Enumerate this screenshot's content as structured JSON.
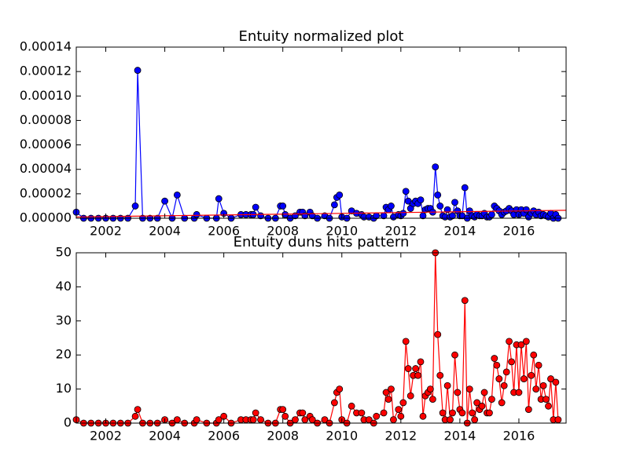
{
  "chart_data": [
    {
      "type": "line",
      "title": "Entuity normalized plot",
      "x": [
        2001.0,
        2001.25,
        2001.5,
        2001.75,
        2002.0,
        2002.25,
        2002.5,
        2002.75,
        2003.0,
        2003.08,
        2003.25,
        2003.5,
        2003.75,
        2004.0,
        2004.25,
        2004.42,
        2004.67,
        2005.0,
        2005.08,
        2005.42,
        2005.75,
        2005.83,
        2006.0,
        2006.25,
        2006.58,
        2006.75,
        2006.92,
        2007.0,
        2007.08,
        2007.25,
        2007.5,
        2007.75,
        2007.92,
        2008.0,
        2008.08,
        2008.25,
        2008.42,
        2008.58,
        2008.67,
        2008.75,
        2008.92,
        2009.0,
        2009.17,
        2009.42,
        2009.58,
        2009.75,
        2009.83,
        2009.92,
        2010.0,
        2010.17,
        2010.33,
        2010.5,
        2010.67,
        2010.75,
        2010.92,
        2011.08,
        2011.17,
        2011.42,
        2011.5,
        2011.58,
        2011.67,
        2011.75,
        2011.92,
        2012.0,
        2012.08,
        2012.17,
        2012.25,
        2012.33,
        2012.42,
        2012.5,
        2012.58,
        2012.67,
        2012.75,
        2012.83,
        2012.92,
        2013.0,
        2013.08,
        2013.17,
        2013.25,
        2013.33,
        2013.42,
        2013.5,
        2013.58,
        2013.67,
        2013.75,
        2013.83,
        2013.92,
        2014.0,
        2014.08,
        2014.17,
        2014.25,
        2014.33,
        2014.42,
        2014.5,
        2014.58,
        2014.67,
        2014.75,
        2014.83,
        2014.92,
        2015.0,
        2015.08,
        2015.17,
        2015.25,
        2015.33,
        2015.42,
        2015.5,
        2015.58,
        2015.67,
        2015.75,
        2015.83,
        2015.92,
        2016.0,
        2016.08,
        2016.17,
        2016.25,
        2016.33,
        2016.42,
        2016.5,
        2016.58,
        2016.67,
        2016.75,
        2016.83,
        2016.92,
        2017.0,
        2017.08,
        2017.17,
        2017.25,
        2017.33
      ],
      "series": [
        {
          "color": "#0000ff",
          "markers": true,
          "values": [
            5e-06,
            0,
            0,
            0,
            0,
            0,
            0,
            0,
            1e-05,
            0.000121,
            0,
            0,
            0,
            1.4e-05,
            0,
            1.9e-05,
            0,
            0,
            3e-06,
            0,
            0,
            1.6e-05,
            4e-06,
            0,
            3e-06,
            3e-06,
            3e-06,
            3e-06,
            9e-06,
            2e-06,
            0,
            0,
            1e-05,
            1e-05,
            3e-06,
            0,
            2e-06,
            5e-06,
            5e-06,
            2e-06,
            5e-06,
            2e-06,
            0,
            2e-06,
            0,
            1.1e-05,
            1.7e-05,
            1.9e-05,
            1e-06,
            0,
            6e-06,
            4e-06,
            3e-06,
            1e-06,
            1e-06,
            0,
            2e-06,
            2e-06,
            9e-06,
            7e-06,
            1e-05,
            1e-06,
            3e-06,
            2e-06,
            4e-06,
            2.2e-05,
            1.4e-05,
            8e-06,
            1.2e-05,
            1.4e-05,
            1.2e-05,
            1.5e-05,
            2e-06,
            7e-06,
            8e-06,
            8e-06,
            5e-06,
            4.2e-05,
            1.9e-05,
            1e-05,
            2e-06,
            1e-06,
            7e-06,
            1e-06,
            2e-06,
            1.3e-05,
            6e-06,
            2e-06,
            2e-06,
            2.5e-05,
            0,
            6e-06,
            2e-06,
            1e-06,
            3e-06,
            2e-06,
            2e-06,
            4e-06,
            1e-06,
            1e-06,
            3e-06,
            1e-05,
            8e-06,
            6e-06,
            3e-06,
            5e-06,
            6e-06,
            8e-06,
            6e-06,
            3e-06,
            7e-06,
            3e-06,
            7e-06,
            4e-06,
            7e-06,
            1e-06,
            4e-06,
            6e-06,
            3e-06,
            5e-06,
            2e-06,
            3e-06,
            2e-06,
            1e-06,
            4e-06,
            0,
            3e-06,
            0
          ]
        },
        {
          "color": "#ff0000",
          "markers": false,
          "x": [
            2001.0,
            2017.6
          ],
          "values": [
            1e-06,
            6.5e-06
          ]
        }
      ],
      "xlim": [
        2001,
        2017.6
      ],
      "ylim": [
        0,
        0.00014
      ],
      "xticks": [
        2002,
        2004,
        2006,
        2008,
        2010,
        2012,
        2014,
        2016
      ],
      "yticks": [
        {
          "value": 0,
          "label": "0.00000"
        },
        {
          "value": 2e-05,
          "label": "0.00002"
        },
        {
          "value": 4e-05,
          "label": "0.00004"
        },
        {
          "value": 6e-05,
          "label": "0.00006"
        },
        {
          "value": 8e-05,
          "label": "0.00008"
        },
        {
          "value": 0.0001,
          "label": "0.00010"
        },
        {
          "value": 0.00012,
          "label": "0.00012"
        },
        {
          "value": 0.00014,
          "label": "0.00014"
        }
      ]
    },
    {
      "type": "line",
      "title": "Entuity duns hits pattern",
      "x": [
        2001.0,
        2001.25,
        2001.5,
        2001.75,
        2002.0,
        2002.25,
        2002.5,
        2002.75,
        2003.0,
        2003.08,
        2003.25,
        2003.5,
        2003.75,
        2004.0,
        2004.25,
        2004.42,
        2004.67,
        2005.0,
        2005.08,
        2005.42,
        2005.75,
        2005.83,
        2006.0,
        2006.25,
        2006.58,
        2006.75,
        2006.92,
        2007.0,
        2007.08,
        2007.25,
        2007.5,
        2007.75,
        2007.92,
        2008.0,
        2008.08,
        2008.25,
        2008.42,
        2008.58,
        2008.67,
        2008.75,
        2008.92,
        2009.0,
        2009.17,
        2009.42,
        2009.58,
        2009.75,
        2009.83,
        2009.92,
        2010.0,
        2010.17,
        2010.33,
        2010.5,
        2010.67,
        2010.75,
        2010.92,
        2011.08,
        2011.17,
        2011.42,
        2011.5,
        2011.58,
        2011.67,
        2011.75,
        2011.92,
        2012.0,
        2012.08,
        2012.17,
        2012.25,
        2012.33,
        2012.42,
        2012.5,
        2012.58,
        2012.67,
        2012.75,
        2012.83,
        2012.92,
        2013.0,
        2013.08,
        2013.17,
        2013.25,
        2013.33,
        2013.42,
        2013.5,
        2013.58,
        2013.67,
        2013.75,
        2013.83,
        2013.92,
        2014.0,
        2014.08,
        2014.17,
        2014.25,
        2014.33,
        2014.42,
        2014.5,
        2014.58,
        2014.67,
        2014.75,
        2014.83,
        2014.92,
        2015.0,
        2015.08,
        2015.17,
        2015.25,
        2015.33,
        2015.42,
        2015.5,
        2015.58,
        2015.67,
        2015.75,
        2015.83,
        2015.92,
        2016.0,
        2016.08,
        2016.17,
        2016.25,
        2016.33,
        2016.42,
        2016.5,
        2016.58,
        2016.67,
        2016.75,
        2016.83,
        2016.92,
        2017.0,
        2017.08,
        2017.17,
        2017.25,
        2017.33
      ],
      "series": [
        {
          "color": "#ff0000",
          "markers": true,
          "values": [
            1,
            0,
            0,
            0,
            0,
            0,
            0,
            0,
            2,
            4,
            0,
            0,
            0,
            1,
            0,
            1,
            0,
            0,
            1,
            0,
            0,
            1,
            2,
            0,
            1,
            1,
            1,
            1,
            3,
            1,
            0,
            0,
            4,
            4,
            2,
            0,
            1,
            3,
            3,
            1,
            2,
            1,
            0,
            1,
            0,
            6,
            9,
            10,
            1,
            0,
            5,
            3,
            3,
            1,
            1,
            0,
            2,
            3,
            9,
            7,
            10,
            1,
            4,
            2,
            6,
            24,
            16,
            8,
            14,
            16,
            14,
            18,
            2,
            8,
            9,
            10,
            7,
            50,
            26,
            14,
            3,
            1,
            11,
            1,
            3,
            20,
            9,
            4,
            3,
            36,
            0,
            10,
            3,
            1,
            6,
            4,
            5,
            9,
            3,
            3,
            7,
            19,
            17,
            13,
            6,
            11,
            15,
            24,
            18,
            9,
            23,
            9,
            23,
            13,
            24,
            4,
            14,
            20,
            10,
            17,
            7,
            11,
            7,
            5,
            13,
            1,
            12,
            1
          ]
        }
      ],
      "xlim": [
        2001,
        2017.6
      ],
      "ylim": [
        0,
        50
      ],
      "xticks": [
        2002,
        2004,
        2006,
        2008,
        2010,
        2012,
        2014,
        2016
      ],
      "yticks": [
        0,
        10,
        20,
        30,
        40,
        50
      ]
    }
  ]
}
